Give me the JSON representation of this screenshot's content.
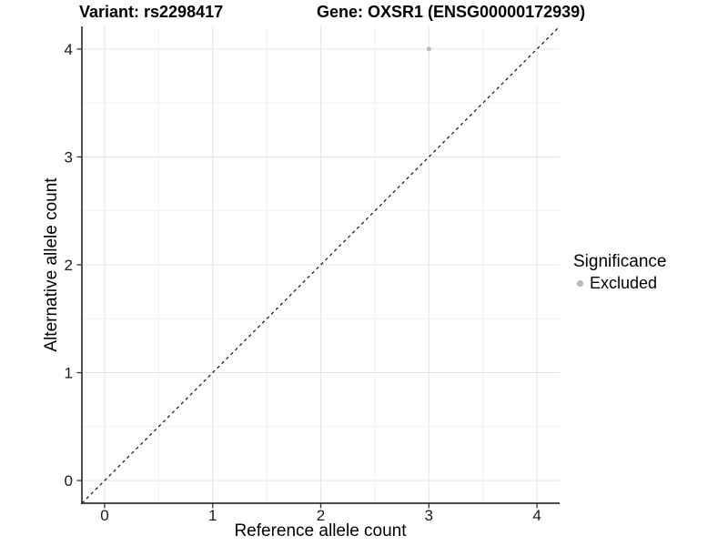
{
  "chart_data": {
    "type": "scatter",
    "title_left": "Variant: rs2298417",
    "title_right": "Gene: OXSR1 (ENSG00000172939)",
    "xlabel": "Reference allele count",
    "ylabel": "Alternative allele count",
    "xlim": [
      -0.21,
      4.21
    ],
    "ylim": [
      -0.21,
      4.21
    ],
    "xticks": [
      0,
      1,
      2,
      3,
      4
    ],
    "yticks": [
      0,
      1,
      2,
      3,
      4
    ],
    "grid": "major+minor",
    "legend_position": "right",
    "points": [
      {
        "x": 3,
        "y": 4,
        "series": "Excluded"
      }
    ],
    "reference_line": {
      "kind": "identity",
      "slope": 1,
      "intercept": 0,
      "style": "dashed",
      "color": "#111111"
    },
    "legend": {
      "title": "Significance",
      "items": [
        {
          "label": "Excluded",
          "marker": "circle",
          "color": "#b8b8b8"
        }
      ]
    },
    "colors": {
      "background": "#ffffff",
      "grid_major": "#e4e4e4",
      "grid_minor": "#f0f0f0",
      "axis_line": "#333333",
      "tick_mark": "#333333",
      "point": "#b8b8b8"
    }
  }
}
